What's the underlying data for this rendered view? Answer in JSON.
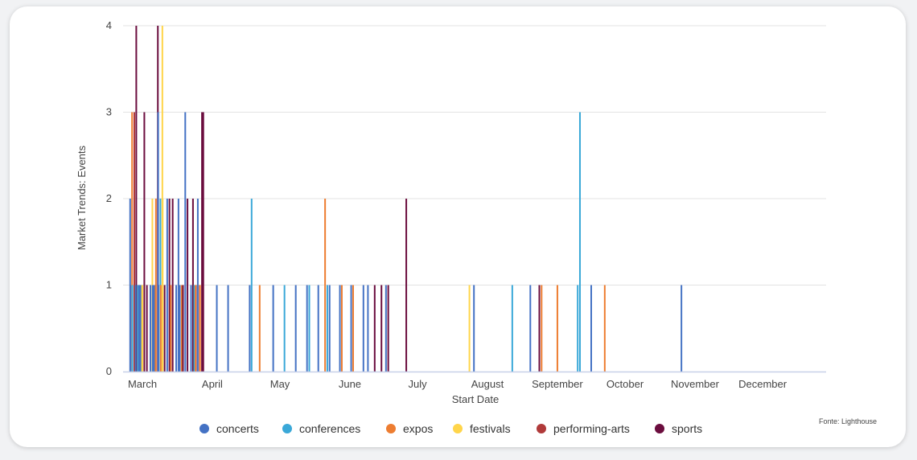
{
  "source_note": "Fonte: Lighthouse",
  "chart_data": {
    "type": "bar",
    "xlabel": "Start Date",
    "ylabel": "Market Trends: Events",
    "ylim": [
      0,
      4
    ],
    "yticks": [
      "0",
      "1",
      "2",
      "3",
      "4"
    ],
    "x_ticks": [
      "March",
      "April",
      "May",
      "June",
      "July",
      "August",
      "September",
      "October",
      "November",
      "December"
    ],
    "grid": true,
    "legend_position": "bottom",
    "series": [
      {
        "name": "concerts",
        "color": "#4472c4",
        "points": [
          [
            "2024-03-01",
            2
          ],
          [
            "2024-03-02",
            1
          ],
          [
            "2024-03-03",
            1
          ],
          [
            "2024-03-05",
            1
          ],
          [
            "2024-03-06",
            1
          ],
          [
            "2024-03-10",
            1
          ],
          [
            "2024-03-11",
            1
          ],
          [
            "2024-03-12",
            1
          ],
          [
            "2024-03-13",
            3
          ],
          [
            "2024-03-14",
            1
          ],
          [
            "2024-03-17",
            2
          ],
          [
            "2024-03-21",
            1
          ],
          [
            "2024-03-22",
            2
          ],
          [
            "2024-03-23",
            1
          ],
          [
            "2024-03-25",
            3
          ],
          [
            "2024-03-28",
            1
          ],
          [
            "2024-03-31",
            2
          ],
          [
            "2024-04-08",
            1
          ],
          [
            "2024-04-13",
            1
          ],
          [
            "2024-04-23",
            1
          ],
          [
            "2024-05-03",
            1
          ],
          [
            "2024-05-13",
            1
          ],
          [
            "2024-05-18",
            1
          ],
          [
            "2024-05-23",
            1
          ],
          [
            "2024-05-28",
            1
          ],
          [
            "2024-06-02",
            1
          ],
          [
            "2024-06-07",
            1
          ],
          [
            "2024-06-12",
            1
          ],
          [
            "2024-06-14",
            1
          ],
          [
            "2024-06-22",
            1
          ],
          [
            "2024-07-31",
            1
          ],
          [
            "2024-08-25",
            1
          ],
          [
            "2024-09-21",
            1
          ],
          [
            "2024-10-31",
            1
          ]
        ]
      },
      {
        "name": "conferences",
        "color": "#3aa8d8",
        "points": [
          [
            "2024-03-02",
            1
          ],
          [
            "2024-03-04",
            1
          ],
          [
            "2024-03-14",
            2
          ],
          [
            "2024-03-29",
            1
          ],
          [
            "2024-04-23",
            2
          ],
          [
            "2024-05-08",
            1
          ],
          [
            "2024-05-19",
            1
          ],
          [
            "2024-05-27",
            1
          ],
          [
            "2024-08-17",
            1
          ],
          [
            "2024-09-15",
            1
          ],
          [
            "2024-09-16",
            3
          ]
        ]
      },
      {
        "name": "expos",
        "color": "#ed7d31",
        "points": [
          [
            "2024-03-01",
            3
          ],
          [
            "2024-03-11",
            1
          ],
          [
            "2024-03-12",
            2
          ],
          [
            "2024-03-15",
            1
          ],
          [
            "2024-03-19",
            1
          ],
          [
            "2024-03-23",
            1
          ],
          [
            "2024-03-30",
            1
          ],
          [
            "2024-04-01",
            1
          ],
          [
            "2024-04-27",
            1
          ],
          [
            "2024-05-26",
            2
          ],
          [
            "2024-06-02",
            1
          ],
          [
            "2024-06-07",
            1
          ],
          [
            "2024-08-30",
            1
          ],
          [
            "2024-09-06",
            1
          ],
          [
            "2024-09-27",
            1
          ]
        ]
      },
      {
        "name": "festivals",
        "color": "#ffd54a",
        "points": [
          [
            "2024-03-05",
            1
          ],
          [
            "2024-03-06",
            1
          ],
          [
            "2024-03-10",
            2
          ],
          [
            "2024-03-14",
            4
          ],
          [
            "2024-03-15",
            2
          ],
          [
            "2024-07-29",
            1
          ]
        ]
      },
      {
        "name": "performing-arts",
        "color": "#b03a3a",
        "points": [
          [
            "2024-03-02",
            3
          ],
          [
            "2024-03-31",
            1
          ]
        ]
      },
      {
        "name": "sports",
        "color": "#6b0d3e",
        "points": [
          [
            "2024-03-02",
            4
          ],
          [
            "2024-03-06",
            3
          ],
          [
            "2024-03-08",
            1
          ],
          [
            "2024-03-12",
            4
          ],
          [
            "2024-03-15",
            1
          ],
          [
            "2024-03-18",
            2
          ],
          [
            "2024-03-19",
            2
          ],
          [
            "2024-03-24",
            1
          ],
          [
            "2024-03-26",
            2
          ],
          [
            "2024-03-28",
            2
          ],
          [
            "2024-03-30",
            1
          ],
          [
            "2024-04-01",
            3
          ],
          [
            "2024-04-02",
            3
          ],
          [
            "2024-06-17",
            1
          ],
          [
            "2024-06-20",
            1
          ],
          [
            "2024-06-23",
            1
          ],
          [
            "2024-07-01",
            2
          ],
          [
            "2024-08-29",
            1
          ]
        ]
      }
    ]
  }
}
